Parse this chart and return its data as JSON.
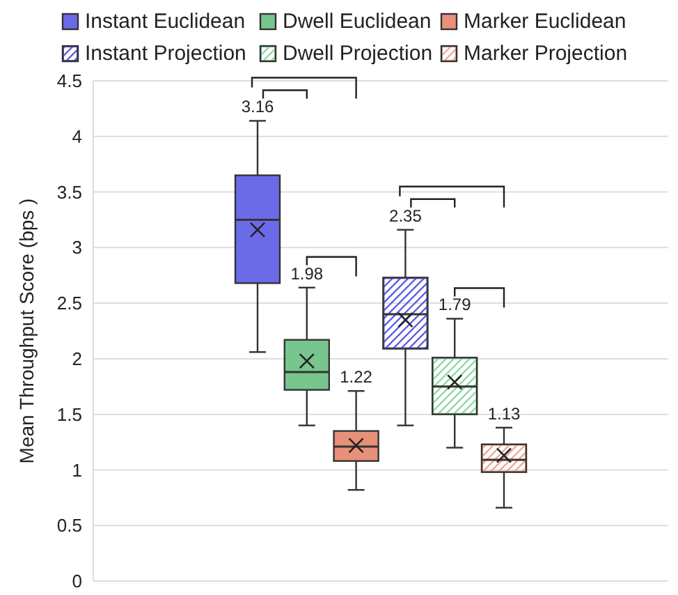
{
  "chart_data": {
    "type": "box",
    "ylabel": "Mean Throughput Score (bps )",
    "categories": [
      null
    ],
    "ylim": [
      0,
      4.5
    ],
    "yticks": [
      0,
      0.5,
      1,
      1.5,
      2,
      2.5,
      3,
      3.5,
      4,
      4.5
    ],
    "grid": "y",
    "legend": "top",
    "tick_labels": "y",
    "marker": "cross",
    "series": [
      {
        "name": "Instant Euclidean",
        "color": "#6b6be8",
        "boxes": [
          {
            "low": 2.06,
            "q1": 2.68,
            "median": 3.25,
            "q3": 3.65,
            "high": 4.14,
            "mean": 3.16
          }
        ],
        "value_labels": [
          "3.16"
        ]
      },
      {
        "name": "Dwell Euclidean",
        "color": "#77c68d",
        "boxes": [
          {
            "low": 1.4,
            "q1": 1.72,
            "median": 1.88,
            "q3": 2.17,
            "high": 2.64,
            "mean": 1.98
          }
        ],
        "value_labels": [
          "1.98"
        ]
      },
      {
        "name": "Marker Euclidean",
        "color": "#e8907a",
        "boxes": [
          {
            "low": 0.82,
            "q1": 1.08,
            "median": 1.21,
            "q3": 1.35,
            "high": 1.71,
            "mean": 1.22
          }
        ],
        "value_labels": [
          "1.22"
        ]
      },
      {
        "name": "Instant Projection",
        "color": "#5050dc",
        "boxes": [
          {
            "low": 1.4,
            "q1": 2.09,
            "median": 2.4,
            "q3": 2.73,
            "high": 3.16,
            "mean": 2.35
          }
        ],
        "value_labels": [
          "2.35"
        ]
      },
      {
        "name": "Dwell Projection",
        "color": "#86d49c",
        "boxes": [
          {
            "low": 1.2,
            "q1": 1.5,
            "median": 1.75,
            "q3": 2.01,
            "high": 2.36,
            "mean": 1.79
          }
        ],
        "value_labels": [
          "1.79"
        ]
      },
      {
        "name": "Marker Projection",
        "color": "#f0a08c",
        "boxes": [
          {
            "low": 0.66,
            "q1": 0.98,
            "median": 1.09,
            "q3": 1.23,
            "high": 1.38,
            "mean": 1.13
          }
        ],
        "value_labels": [
          "1.13"
        ]
      }
    ]
  }
}
